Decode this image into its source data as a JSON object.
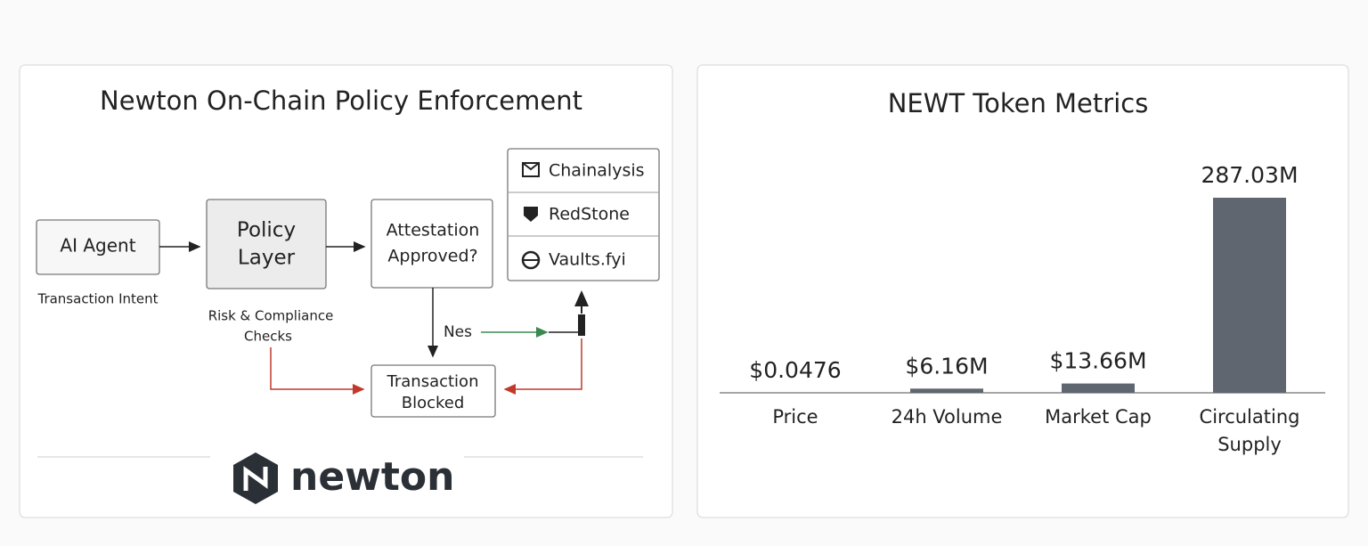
{
  "diagram": {
    "title": "Newton On-Chain Policy Enforcement",
    "nodes": [
      {
        "lines": [
          "AI Agent"
        ]
      },
      {
        "lines": [
          "Policy",
          "Layer"
        ]
      },
      {
        "lines": [
          "Attestation",
          "Approved?"
        ]
      },
      {
        "lines": [
          "Transaction",
          "Blocked"
        ]
      }
    ],
    "providers": [
      "Chainalysis",
      "RedStone",
      "Vaults.fyi"
    ],
    "labels": {
      "intent": "Transaction Intent",
      "checks": [
        "Risk & Compliance",
        "Checks"
      ],
      "yes": "Nes"
    },
    "logo": "newton"
  },
  "chart_data": {
    "type": "bar",
    "title": "NEWT Token Metrics",
    "categories": [
      "Price",
      "24h Volume",
      "Market Cap",
      "Circulating Supply"
    ],
    "values": [
      0.0476,
      6160000,
      13660000,
      287030000
    ],
    "value_labels": [
      "$0.0476",
      "$6.16M",
      "$13.66M",
      "287.03M"
    ],
    "color": "#5f6670"
  }
}
